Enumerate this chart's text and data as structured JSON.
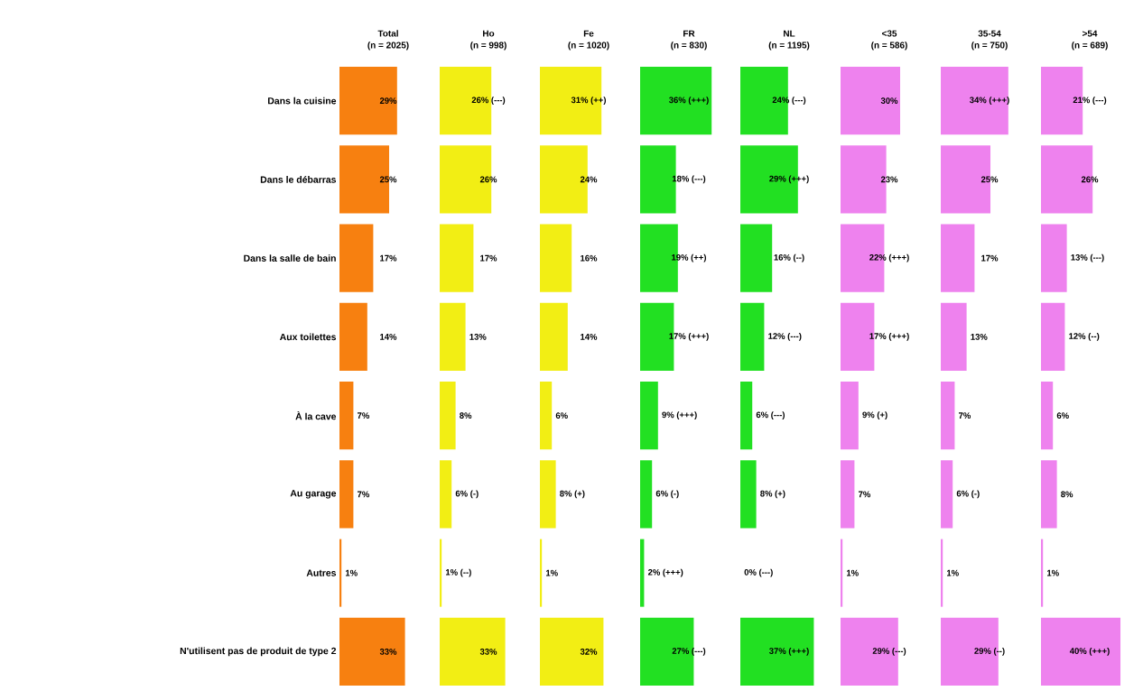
{
  "chart_data": [
    {
      "type": "bar",
      "orientation": "horizontal",
      "title": "Total",
      "subtitle": "(n = 2025)",
      "categories": [
        "Dans la cuisine",
        "Dans le débarras",
        "Dans la salle de bain",
        "Aux toilettes",
        "À la cave",
        "Au garage",
        "Autres",
        "N'utilisent pas de produit de type 2"
      ],
      "values": [
        29,
        25,
        17,
        14,
        7,
        7,
        1,
        33
      ],
      "value_labels": [
        "29%",
        "25%",
        "17%",
        "14%",
        "7%",
        "7%",
        "1%",
        "33%"
      ],
      "color": "#f78010",
      "tick_labels": "y"
    },
    {
      "type": "bar",
      "orientation": "horizontal",
      "title": "Ho",
      "subtitle": "(n = 998)",
      "categories": [
        null,
        null,
        null,
        null,
        null,
        null,
        null,
        null
      ],
      "values": [
        26,
        26,
        17,
        13,
        8,
        6,
        1,
        33
      ],
      "value_labels": [
        "26% (---)",
        "26%",
        "17%",
        "13%",
        "8%",
        "6% (-)",
        "1% (--)",
        "33%"
      ],
      "color": "#f2ee14",
      "tick_labels": false
    },
    {
      "type": "bar",
      "orientation": "horizontal",
      "title": "Fe",
      "subtitle": "(n = 1020)",
      "categories": [
        null,
        null,
        null,
        null,
        null,
        null,
        null,
        null
      ],
      "values": [
        31,
        24,
        16,
        14,
        6,
        8,
        1,
        32
      ],
      "value_labels": [
        "31% (++)",
        "24%",
        "16%",
        "14%",
        "6%",
        "8% (+)",
        "1%",
        "32%"
      ],
      "color": "#f2ee14",
      "tick_labels": false
    },
    {
      "type": "bar",
      "orientation": "horizontal",
      "title": "FR",
      "subtitle": "(n = 830)",
      "categories": [
        null,
        null,
        null,
        null,
        null,
        null,
        null,
        null
      ],
      "values": [
        36,
        18,
        19,
        17,
        9,
        6,
        2,
        27
      ],
      "value_labels": [
        "36% (+++)",
        "18% (---)",
        "19% (++)",
        "17% (+++)",
        "9% (+++)",
        "6% (-)",
        "2% (+++)",
        "27% (---)"
      ],
      "color": "#22e022",
      "tick_labels": false
    },
    {
      "type": "bar",
      "orientation": "horizontal",
      "title": "NL",
      "subtitle": "(n = 1195)",
      "categories": [
        null,
        null,
        null,
        null,
        null,
        null,
        null,
        null
      ],
      "values": [
        24,
        29,
        16,
        12,
        6,
        8,
        0,
        37
      ],
      "value_labels": [
        "24% (---)",
        "29% (+++)",
        "16% (--)",
        "12% (---)",
        "6% (---)",
        "8% (+)",
        "0% (---)",
        "37% (+++)"
      ],
      "color": "#22e022",
      "tick_labels": false
    },
    {
      "type": "bar",
      "orientation": "horizontal",
      "title": "<35",
      "subtitle": "(n = 586)",
      "categories": [
        null,
        null,
        null,
        null,
        null,
        null,
        null,
        null
      ],
      "values": [
        30,
        23,
        22,
        17,
        9,
        7,
        1,
        29
      ],
      "value_labels": [
        "30%",
        "23%",
        "22% (+++)",
        "17% (+++)",
        "9% (+)",
        "7%",
        "1%",
        "29% (---)"
      ],
      "color": "#ee82ee",
      "tick_labels": false
    },
    {
      "type": "bar",
      "orientation": "horizontal",
      "title": "35-54",
      "subtitle": "(n = 750)",
      "categories": [
        null,
        null,
        null,
        null,
        null,
        null,
        null,
        null
      ],
      "values": [
        34,
        25,
        17,
        13,
        7,
        6,
        1,
        29
      ],
      "value_labels": [
        "34% (+++)",
        "25%",
        "17%",
        "13%",
        "7%",
        "6% (-)",
        "1%",
        "29% (--)"
      ],
      "color": "#ee82ee",
      "tick_labels": false
    },
    {
      "type": "bar",
      "orientation": "horizontal",
      "title": ">54",
      "subtitle": "(n = 689)",
      "categories": [
        null,
        null,
        null,
        null,
        null,
        null,
        null,
        null
      ],
      "values": [
        21,
        26,
        13,
        12,
        6,
        8,
        1,
        40
      ],
      "value_labels": [
        "21% (---)",
        "26%",
        "13% (---)",
        "12% (--)",
        "6%",
        "8%",
        "1%",
        "40% (+++)"
      ],
      "color": "#ee82ee",
      "tick_labels": false
    }
  ]
}
